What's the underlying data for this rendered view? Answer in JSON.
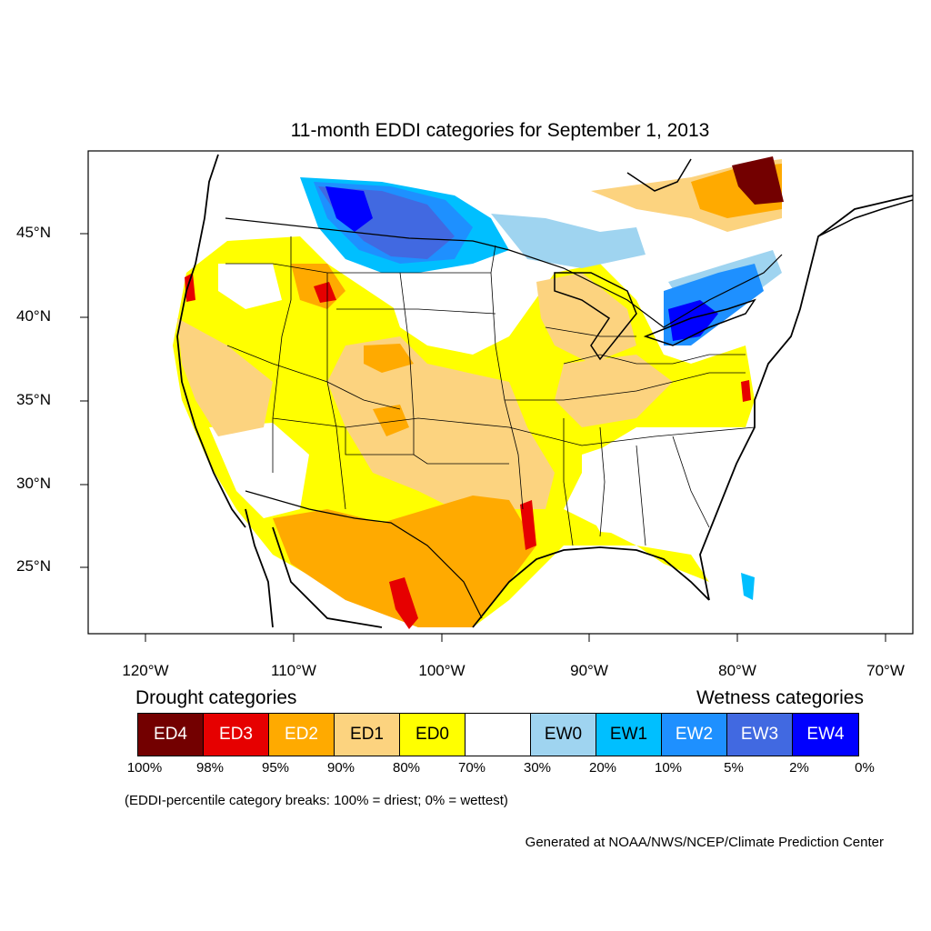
{
  "title": "11-month EDDI categories for September 1, 2013",
  "axes": {
    "lat_labels": [
      "45°N",
      "40°N",
      "35°N",
      "30°N",
      "25°N"
    ],
    "lon_labels": [
      "120°W",
      "110°W",
      "100°W",
      "90°W",
      "80°W",
      "70°W"
    ]
  },
  "legend": {
    "drought_title": "Drought categories",
    "wetness_title": "Wetness categories",
    "categories": [
      {
        "label": "ED4",
        "color": "#730000",
        "text_color": "#ffffff"
      },
      {
        "label": "ED3",
        "color": "#e60000",
        "text_color": "#ffffff"
      },
      {
        "label": "ED2",
        "color": "#ffaa00",
        "text_color": "#ffffff"
      },
      {
        "label": "ED1",
        "color": "#fcd37f",
        "text_color": "#000000"
      },
      {
        "label": "ED0",
        "color": "#ffff00",
        "text_color": "#000000"
      },
      {
        "label": "",
        "color": "#ffffff",
        "text_color": "#000000"
      },
      {
        "label": "EW0",
        "color": "#9fd4f0",
        "text_color": "#000000"
      },
      {
        "label": "EW1",
        "color": "#00bfff",
        "text_color": "#000000"
      },
      {
        "label": "EW2",
        "color": "#1e90ff",
        "text_color": "#ffffff"
      },
      {
        "label": "EW3",
        "color": "#4169e1",
        "text_color": "#ffffff"
      },
      {
        "label": "EW4",
        "color": "#0000ff",
        "text_color": "#ffffff"
      }
    ],
    "percentiles": [
      "100%",
      "98%",
      "95%",
      "90%",
      "80%",
      "70%",
      "30%",
      "20%",
      "10%",
      "5%",
      "2%",
      "0%"
    ]
  },
  "note": "(EDDI-percentile category breaks: 100% = driest; 0% = wettest)",
  "credit": "Generated at NOAA/NWS/NCEP/Climate Prediction Center"
}
